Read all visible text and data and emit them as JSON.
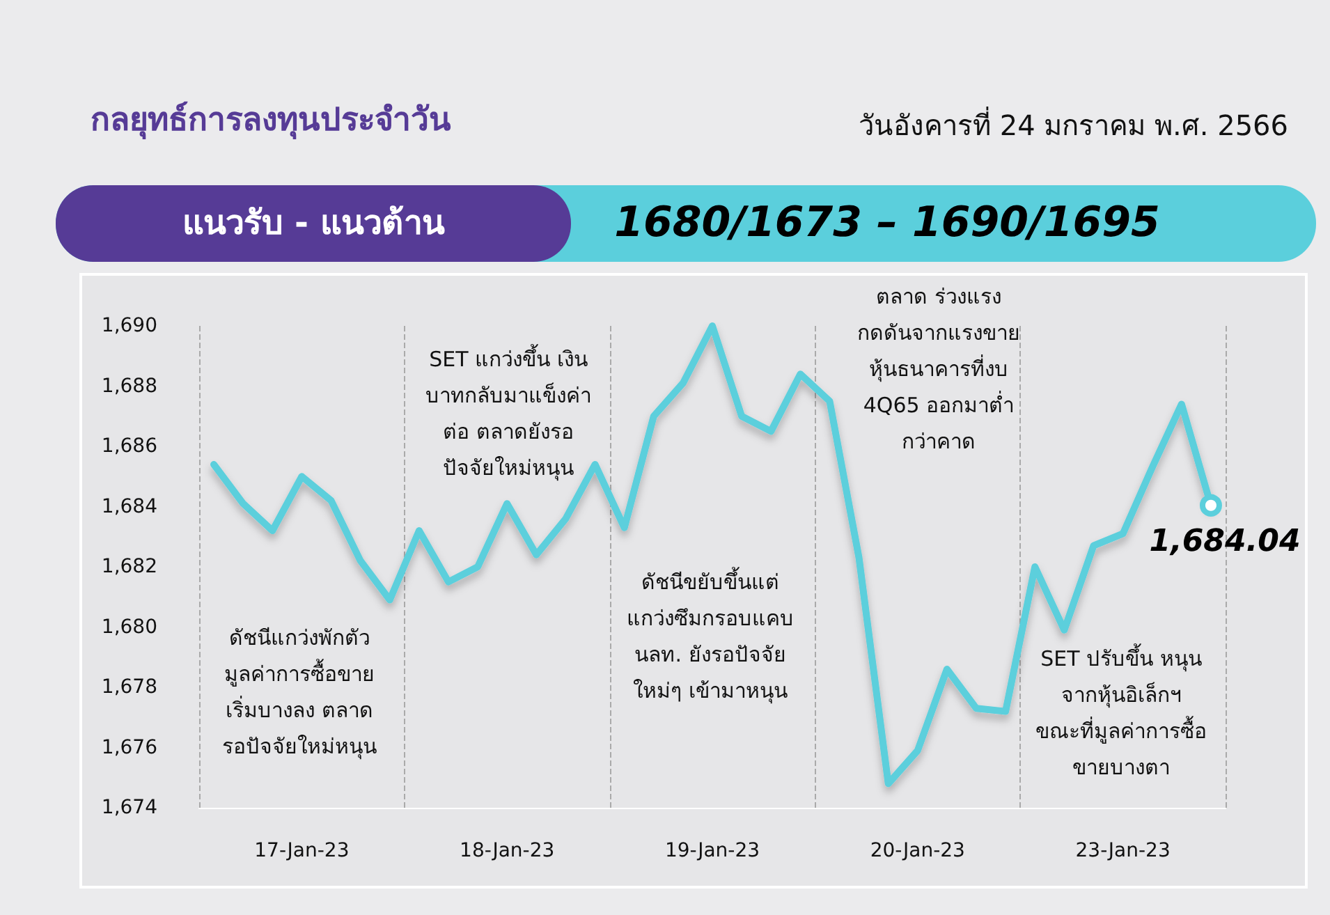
{
  "chart_data": {
    "type": "line",
    "title": "กลยุทธ์การลงทุนประจำวัน",
    "subtitle": "วันอังคารที่ 24 มกราคม พ.ศ. 2566",
    "annotations": [
      "แนวรับ - แนวต้าน",
      "1680/1673 – 1690/1695",
      "ดัชนีแกว่งพักตัว\nมูลค่าการซื้อขาย\nเริ่มบางลง ตลาด\nรอปัจจัยใหม่หนุน",
      "SET แกว่งขึ้น เงิน\nบาทกลับมาแข็งค่า\nต่อ ตลาดยังรอ\nปัจจัยใหม่หนุน",
      "ดัชนีขยับขึ้นแต่\nแกว่งซึมกรอบแคบ\nนลท. ยังรอปัจจัย\nใหม่ๆ เข้ามาหนุน",
      "ตลาด ร่วงแรง\nกดดันจากแรงขาย\nหุ้นธนาคารที่งบ\n4Q65 ออกมาต่ำ\nกว่าคาด",
      "SET ปรับขึ้น หนุน\nจากหุ้นอิเล็กฯ\nขณะที่มูลค่าการซื้อ\nขายบางตา"
    ],
    "categories": [
      null,
      null,
      null,
      "17-Jan-23",
      null,
      null,
      null,
      null,
      null,
      null,
      "18-Jan-23",
      null,
      null,
      null,
      null,
      null,
      null,
      "19-Jan-23",
      null,
      null,
      null,
      null,
      null,
      null,
      "20-Jan-23",
      null,
      null,
      null,
      null,
      null,
      null,
      "23-Jan-23",
      null,
      null,
      null
    ],
    "series": [
      {
        "color": "#5bcfdc",
        "values": [
          1685.4,
          1684.1,
          1683.2,
          1685.0,
          1684.2,
          1682.2,
          1680.9,
          1683.2,
          1681.5,
          1682.0,
          1684.1,
          1682.4,
          1683.6,
          1685.4,
          1683.3,
          1687.0,
          1688.1,
          1690.0,
          1687.0,
          1686.5,
          1688.4,
          1687.5,
          1682.3,
          1674.8,
          1675.9,
          1678.6,
          1677.3,
          1677.2,
          1682.0,
          1679.9,
          1682.7,
          1683.1,
          1685.3,
          1687.4,
          1684.04
        ],
        "value_labels": [
          null,
          null,
          null,
          null,
          null,
          null,
          null,
          null,
          null,
          null,
          null,
          null,
          null,
          null,
          null,
          null,
          null,
          null,
          null,
          null,
          null,
          null,
          null,
          null,
          null,
          null,
          null,
          null,
          null,
          null,
          null,
          null,
          null,
          null,
          "1,684.04"
        ]
      }
    ],
    "ylim": [
      1674,
      1690
    ],
    "yticks": [
      {
        "value": 1674,
        "label": "1,674"
      },
      {
        "value": 1676,
        "label": "1,676"
      },
      {
        "value": 1678,
        "label": "1,678"
      },
      {
        "value": 1680,
        "label": "1,680"
      },
      {
        "value": 1682,
        "label": "1,682"
      },
      {
        "value": 1684,
        "label": "1,684"
      },
      {
        "value": 1686,
        "label": "1,686"
      },
      {
        "value": 1688,
        "label": "1,688"
      },
      {
        "value": 1690,
        "label": "1,690"
      }
    ],
    "grid": "x",
    "line_style": "solid"
  }
}
